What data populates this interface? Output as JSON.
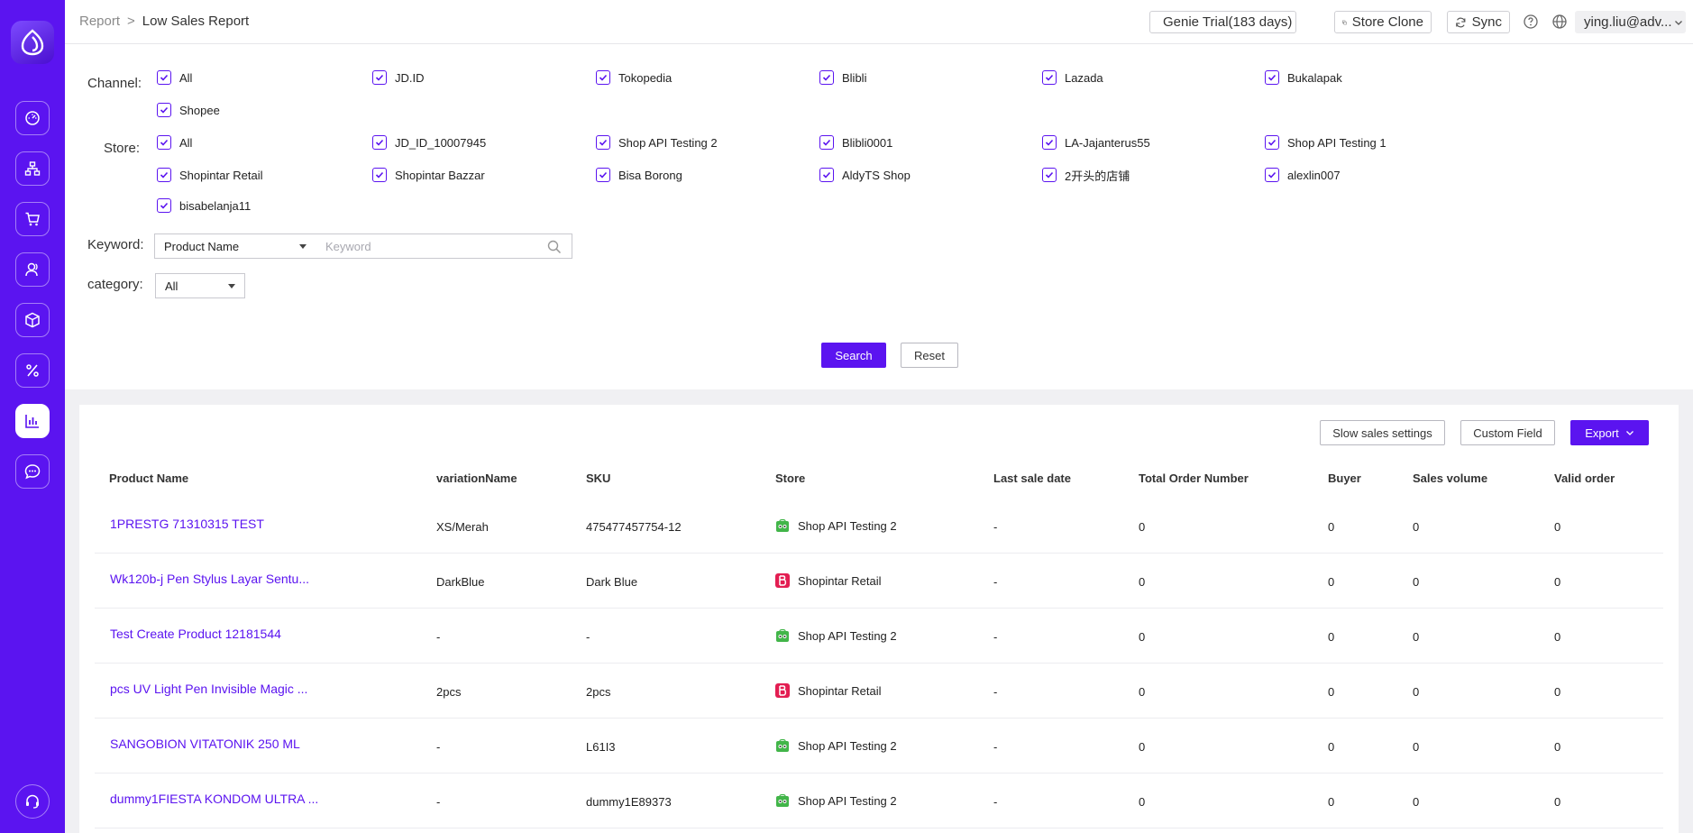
{
  "breadcrumb": {
    "root": "Report",
    "separator": ">",
    "current": "Low Sales Report"
  },
  "topbar": {
    "trial": "Genie Trial(183 days)",
    "store_clone": "Store Clone",
    "sync": "Sync",
    "user": "ying.liu@adv..."
  },
  "filters": {
    "channel_label": "Channel:",
    "channels": [
      "All",
      "JD.ID",
      "Tokopedia",
      "Blibli",
      "Lazada",
      "Bukalapak",
      "Shopee"
    ],
    "store_label": "Store:",
    "stores": [
      "All",
      "JD_ID_10007945",
      "Shop API Testing 2",
      "Blibli0001",
      "LA-Jajanterus55",
      "Shop API Testing 1",
      "Shopintar Retail",
      "Shopintar Bazzar",
      "Bisa Borong",
      "AldyTS Shop",
      "2开头的店铺",
      "alexlin007",
      "bisabelanja11"
    ],
    "keyword_label": "Keyword:",
    "keyword_type": "Product Name",
    "keyword_placeholder": "Keyword",
    "category_label": "category:",
    "category_value": "All",
    "search": "Search",
    "reset": "Reset"
  },
  "table_actions": {
    "slow_sales": "Slow sales settings",
    "custom_field": "Custom Field",
    "export": "Export"
  },
  "table": {
    "columns": [
      "Product Name",
      "variationName",
      "SKU",
      "Store",
      "Last sale date",
      "Total Order Number",
      "Buyer",
      "Sales volume",
      "Valid order"
    ],
    "rows": [
      {
        "product": "1PRESTG 71310315 TEST",
        "variation": "XS/Merah",
        "sku": "475477457754-12",
        "store": "Shop API Testing 2",
        "store_icon": "tokopedia-icon",
        "last_sale": "-",
        "total_orders": "0",
        "buyer": "0",
        "sales_volume": "0",
        "valid_order": "0"
      },
      {
        "product": "Wk120b-j Pen Stylus Layar Sentu...",
        "variation": "DarkBlue",
        "sku": "Dark Blue",
        "store": "Shopintar Retail",
        "store_icon": "blibli-icon",
        "last_sale": "-",
        "total_orders": "0",
        "buyer": "0",
        "sales_volume": "0",
        "valid_order": "0"
      },
      {
        "product": "Test Create Product 12181544",
        "variation": "-",
        "sku": "-",
        "store": "Shop API Testing 2",
        "store_icon": "tokopedia-icon",
        "last_sale": "-",
        "total_orders": "0",
        "buyer": "0",
        "sales_volume": "0",
        "valid_order": "0"
      },
      {
        "product": "pcs UV Light Pen Invisible Magic ...",
        "variation": "2pcs",
        "sku": "2pcs",
        "store": "Shopintar Retail",
        "store_icon": "blibli-icon",
        "last_sale": "-",
        "total_orders": "0",
        "buyer": "0",
        "sales_volume": "0",
        "valid_order": "0"
      },
      {
        "product": "SANGOBION VITATONIK 250 ML",
        "variation": "-",
        "sku": "L61I3",
        "store": "Shop API Testing 2",
        "store_icon": "tokopedia-icon",
        "last_sale": "-",
        "total_orders": "0",
        "buyer": "0",
        "sales_volume": "0",
        "valid_order": "0"
      },
      {
        "product": "dummy1FIESTA KONDOM ULTRA ...",
        "variation": "-",
        "sku": "dummy1E89373",
        "store": "Shop API Testing 2",
        "store_icon": "tokopedia-icon",
        "last_sale": "-",
        "total_orders": "0",
        "buyer": "0",
        "sales_volume": "0",
        "valid_order": "0"
      }
    ]
  },
  "sidebar": {
    "icons": [
      "dashboard-icon",
      "organization-icon",
      "cart-icon",
      "customers-icon",
      "package-icon",
      "percent-icon",
      "report-icon",
      "chat-icon"
    ],
    "active": "report-icon",
    "support_icon": "headset-icon"
  },
  "colors": {
    "accent": "#5b14f0",
    "tokopedia": "#42b549",
    "blibli": "#e31e52"
  }
}
